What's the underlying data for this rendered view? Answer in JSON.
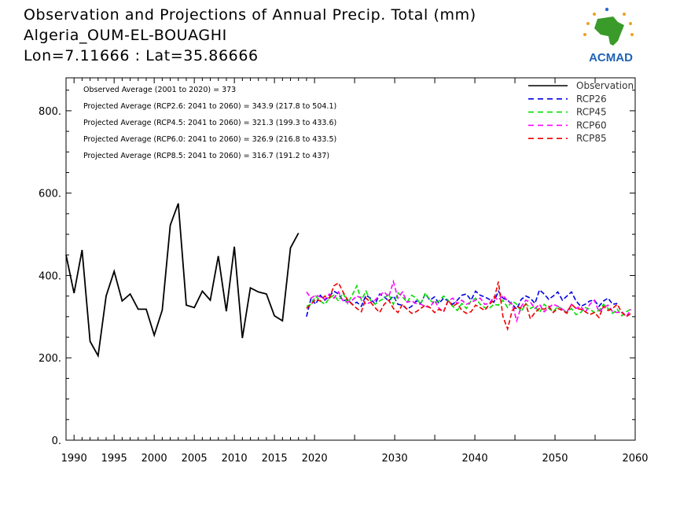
{
  "header": {
    "title": "Observation and Projections of Annual Precip. Total (mm)",
    "location": "Algeria_OUM-EL-BOUAGHI",
    "coords": "Lon=7.11666 : Lat=35.86666"
  },
  "logo": {
    "text": "ACMAD",
    "icon": "africa-map-logo-icon"
  },
  "colors": {
    "observation": "#000000",
    "rcp26": "#0000e6",
    "rcp45": "#00e000",
    "rcp60": "#ff00ff",
    "rcp85": "#ee0000",
    "logo_text": "#1f63b5",
    "logo_map": "#3a9a2a",
    "logo_accent": "#f0a020"
  },
  "chart_data": {
    "type": "line",
    "xlim": [
      1989,
      2060
    ],
    "ylim": [
      0,
      880
    ],
    "x_ticks_major": [
      1990,
      1995,
      2000,
      2005,
      2010,
      2015,
      2020,
      2030,
      2040,
      2050,
      2060
    ],
    "y_ticks": [
      {
        "value": 0,
        "label": "0."
      },
      {
        "value": 200,
        "label": "200."
      },
      {
        "value": 400,
        "label": "400."
      },
      {
        "value": 600,
        "label": "600."
      },
      {
        "value": 800,
        "label": "800."
      }
    ],
    "grid": false,
    "legend_position": "top-right",
    "annotations": [
      "Observed Average (2001 to 2020) = 373",
      "Projected Average (RCP2.6: 2041 to 2060) = 343.9 (217.8 to 504.1)",
      "Projected Average (RCP4.5: 2041 to 2060) = 321.3 (199.3 to 433.6)",
      "Projected Average (RCP6.0: 2041 to 2060) = 326.9 (216.8 to 433.5)",
      "Projected Average (RCP8.5: 2041 to 2060) = 316.7 (191.2 to 437)"
    ],
    "series": [
      {
        "name": "Observation",
        "key": "observation",
        "dashed": false,
        "x": [
          1989,
          1990,
          1991,
          1992,
          1993,
          1994,
          1995,
          1996,
          1997,
          1998,
          1999,
          2000,
          2001,
          2002,
          2003,
          2004,
          2005,
          2006,
          2007,
          2008,
          2009,
          2010,
          2011,
          2012,
          2013,
          2014,
          2015,
          2016,
          2017,
          2018,
          2019
        ],
        "values": [
          450,
          357,
          462,
          240,
          205,
          350,
          410,
          338,
          355,
          318,
          318,
          255,
          316,
          522,
          575,
          328,
          322,
          362,
          340,
          447,
          313,
          470,
          248,
          370,
          360,
          355,
          302,
          290,
          467,
          503,
          null
        ]
      },
      {
        "name": "RCP26",
        "key": "rcp26",
        "dashed": true,
        "x_start": 2019,
        "values": [
          300,
          345,
          330,
          352,
          340,
          350,
          362,
          355,
          338,
          342,
          330,
          335,
          325,
          352,
          345,
          330,
          355,
          348,
          338,
          350,
          330,
          328,
          318,
          325,
          338,
          332,
          355,
          340,
          348,
          332,
          345,
          338,
          330,
          340,
          352,
          355,
          340,
          362,
          352,
          348,
          342,
          335,
          362,
          345,
          340,
          330,
          318,
          342,
          350,
          345,
          332,
          365,
          355,
          342,
          350,
          360,
          340,
          350,
          360,
          338,
          325,
          330,
          338,
          340,
          325,
          338,
          345,
          330,
          332
        ]
      },
      {
        "name": "RCP45",
        "key": "rcp45",
        "dashed": true,
        "x_start": 2019,
        "values": [
          325,
          330,
          350,
          338,
          330,
          345,
          352,
          338,
          358,
          332,
          352,
          375,
          340,
          362,
          340,
          330,
          338,
          345,
          355,
          330,
          358,
          348,
          335,
          352,
          345,
          330,
          358,
          340,
          332,
          338,
          350,
          340,
          325,
          315,
          332,
          320,
          338,
          345,
          330,
          322,
          320,
          330,
          328,
          340,
          322,
          338,
          330,
          312,
          332,
          320,
          325,
          310,
          330,
          320,
          312,
          325,
          318,
          310,
          320,
          305,
          310,
          322,
          318,
          310,
          315,
          330,
          320,
          308,
          318,
          302,
          312,
          318
        ]
      },
      {
        "name": "RCP60",
        "key": "rcp60",
        "dashed": true,
        "x_start": 2019,
        "values": [
          360,
          345,
          352,
          348,
          342,
          355,
          345,
          360,
          338,
          335,
          340,
          350,
          345,
          330,
          335,
          340,
          352,
          360,
          348,
          385,
          345,
          360,
          335,
          338,
          332,
          330,
          325,
          322,
          340,
          320,
          312,
          338,
          345,
          332,
          340,
          330,
          335,
          340,
          345,
          330,
          332,
          348,
          340,
          352,
          338,
          330,
          290,
          325,
          340,
          335,
          320,
          330,
          312,
          322,
          330,
          325,
          318,
          312,
          330,
          320,
          325,
          310,
          330,
          340,
          312,
          322,
          328,
          312,
          310,
          312,
          300,
          318
        ]
      },
      {
        "name": "RCP85",
        "key": "rcp85",
        "dashed": true,
        "x_start": 2019,
        "values": [
          320,
          330,
          342,
          338,
          350,
          345,
          375,
          382,
          360,
          340,
          330,
          320,
          312,
          345,
          335,
          322,
          310,
          330,
          340,
          320,
          310,
          330,
          318,
          308,
          312,
          320,
          328,
          322,
          310,
          318,
          312,
          340,
          325,
          332,
          315,
          308,
          312,
          328,
          322,
          315,
          330,
          340,
          385,
          300,
          270,
          315,
          325,
          320,
          330,
          295,
          310,
          320,
          318,
          325,
          310,
          320,
          315,
          308,
          330,
          320,
          318,
          312,
          305,
          310,
          298,
          325,
          315,
          320,
          330,
          310,
          300,
          308
        ]
      }
    ]
  }
}
